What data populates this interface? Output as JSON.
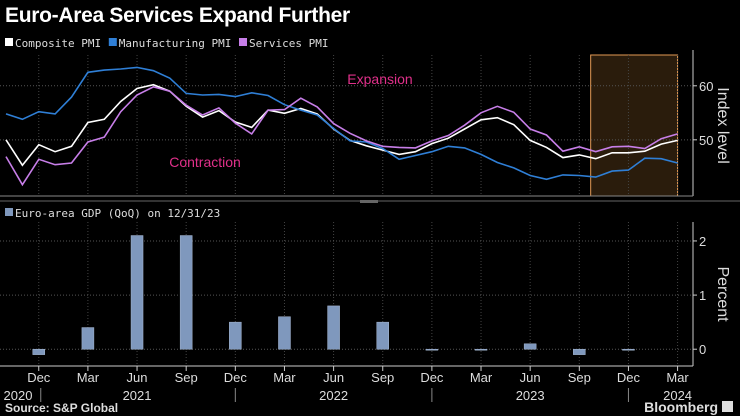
{
  "title": "Euro-Area Services Expand Further",
  "source": "Source: S&P Global",
  "logo": "Bloomberg",
  "colors": {
    "composite": "#ffffff",
    "manufacturing": "#2f7fd6",
    "services": "#c77ee8",
    "gdp": "#7f98bd",
    "shade_fill": "#2a1c0c",
    "shade_border": "#e39a55",
    "annotation": "#e0308a"
  },
  "chart_data": [
    {
      "type": "line",
      "ylabel": "Index level",
      "ylim": [
        39.6,
        65.7
      ],
      "yticks": [
        50,
        60
      ],
      "grid": true,
      "legend": "top-left",
      "annotations": [
        "Expansion",
        "Contraction"
      ],
      "shaded_period": [
        "Oct 2023",
        "Mar 2024"
      ],
      "x": [
        "Oct 2020",
        "Nov 2020",
        "Dec 2020",
        "Jan 2021",
        "Feb 2021",
        "Mar 2021",
        "Apr 2021",
        "May 2021",
        "Jun 2021",
        "Jul 2021",
        "Aug 2021",
        "Sep 2021",
        "Oct 2021",
        "Nov 2021",
        "Dec 2021",
        "Jan 2022",
        "Feb 2022",
        "Mar 2022",
        "Apr 2022",
        "May 2022",
        "Jun 2022",
        "Jul 2022",
        "Aug 2022",
        "Sep 2022",
        "Oct 2022",
        "Nov 2022",
        "Dec 2022",
        "Jan 2023",
        "Feb 2023",
        "Mar 2023",
        "Apr 2023",
        "May 2023",
        "Jun 2023",
        "Jul 2023",
        "Aug 2023",
        "Sep 2023",
        "Oct 2023",
        "Nov 2023",
        "Dec 2023",
        "Jan 2024",
        "Feb 2024",
        "Mar 2024"
      ],
      "series": [
        {
          "name": "Composite PMI",
          "color": "#ffffff",
          "values": [
            50.0,
            45.3,
            49.1,
            47.8,
            48.8,
            53.2,
            53.8,
            57.1,
            59.5,
            60.2,
            59.0,
            56.2,
            54.2,
            55.4,
            53.3,
            52.3,
            55.5,
            54.9,
            55.8,
            54.8,
            52.0,
            49.9,
            48.9,
            48.1,
            47.3,
            47.8,
            49.3,
            50.3,
            52.0,
            53.7,
            54.1,
            52.8,
            49.9,
            48.6,
            46.7,
            47.2,
            46.5,
            47.6,
            47.6,
            47.9,
            49.2,
            49.9
          ]
        },
        {
          "name": "Manufacturing PMI",
          "color": "#2f7fd6",
          "values": [
            54.8,
            53.8,
            55.2,
            54.8,
            57.9,
            62.5,
            62.9,
            63.1,
            63.4,
            62.8,
            61.4,
            58.6,
            58.3,
            58.4,
            58.0,
            58.7,
            58.2,
            56.5,
            55.5,
            54.6,
            52.1,
            49.8,
            49.6,
            48.4,
            46.4,
            47.1,
            47.8,
            48.8,
            48.5,
            47.3,
            45.8,
            44.8,
            43.4,
            42.7,
            43.5,
            43.4,
            43.1,
            44.2,
            44.4,
            46.6,
            46.5,
            45.7
          ]
        },
        {
          "name": "Services PMI",
          "color": "#c77ee8",
          "values": [
            46.9,
            41.7,
            46.4,
            45.4,
            45.7,
            49.6,
            50.5,
            55.2,
            58.3,
            59.8,
            59.0,
            56.4,
            54.6,
            55.9,
            53.1,
            51.1,
            55.5,
            55.6,
            57.7,
            56.1,
            53.0,
            51.2,
            49.8,
            48.8,
            48.6,
            48.5,
            49.8,
            50.8,
            52.7,
            55.0,
            56.2,
            55.1,
            52.0,
            50.9,
            47.9,
            48.7,
            47.8,
            48.7,
            48.8,
            48.4,
            50.2,
            51.1
          ]
        }
      ]
    },
    {
      "type": "bar",
      "ylabel": "Percent",
      "ylim": [
        -0.31,
        2.35
      ],
      "yticks": [
        0,
        1,
        2
      ],
      "grid": true,
      "legend": "top-left",
      "series": [
        {
          "name": "Euro-area GDP (QoQ) on 12/31/23",
          "color": "#7f98bd"
        }
      ],
      "categories": [
        "Dec 2020",
        "Mar 2021",
        "Jun 2021",
        "Sep 2021",
        "Dec 2021",
        "Mar 2022",
        "Jun 2022",
        "Sep 2022",
        "Dec 2022",
        "Mar 2023",
        "Jun 2023",
        "Sep 2023",
        "Dec 2023"
      ],
      "values": [
        -0.1,
        0.4,
        2.1,
        2.1,
        0.5,
        0.6,
        0.8,
        0.5,
        0.0,
        0.0,
        0.1,
        -0.1,
        0.0
      ]
    }
  ],
  "xaxis": {
    "month_ticks": [
      "Dec",
      "Mar",
      "Jun",
      "Sep",
      "Dec",
      "Mar",
      "Jun",
      "Sep",
      "Dec",
      "Mar",
      "Jun",
      "Sep",
      "Dec",
      "Mar"
    ],
    "years": [
      "2020",
      "2021",
      "2022",
      "2023",
      "2024"
    ]
  }
}
